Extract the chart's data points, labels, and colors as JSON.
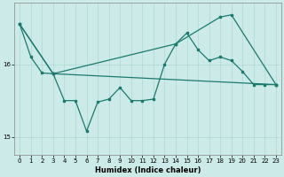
{
  "xlabel": "Humidex (Indice chaleur)",
  "bg_color": "#cceae7",
  "line_color": "#1a7a6e",
  "grid_color": "#aed8d4",
  "xlim": [
    -0.5,
    23.5
  ],
  "ylim": [
    14.75,
    16.85
  ],
  "yticks": [
    15,
    16
  ],
  "xticks": [
    0,
    1,
    2,
    3,
    4,
    5,
    6,
    7,
    8,
    9,
    10,
    11,
    12,
    13,
    14,
    15,
    16,
    17,
    18,
    19,
    20,
    21,
    22,
    23
  ],
  "line1_x": [
    0,
    1,
    2,
    3,
    4,
    5,
    6,
    7,
    8,
    9,
    10,
    11,
    12,
    13,
    14,
    15,
    16,
    17,
    18,
    19,
    20,
    21,
    22,
    23
  ],
  "line1_y": [
    16.55,
    16.1,
    15.88,
    15.87,
    15.5,
    15.5,
    15.08,
    15.48,
    15.52,
    15.68,
    15.5,
    15.5,
    15.52,
    16.0,
    16.28,
    16.43,
    16.2,
    16.05,
    16.1,
    16.05,
    15.9,
    15.72,
    15.72,
    15.72
  ],
  "line2_x": [
    0,
    3,
    23
  ],
  "line2_y": [
    16.55,
    15.87,
    15.72
  ],
  "line3_x": [
    0,
    3,
    14,
    18,
    19,
    23
  ],
  "line3_y": [
    16.55,
    15.87,
    16.28,
    16.65,
    16.68,
    15.72
  ]
}
